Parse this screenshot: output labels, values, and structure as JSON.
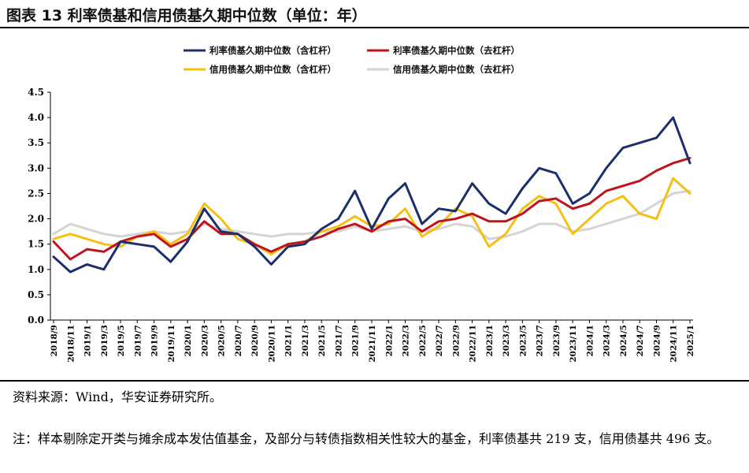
{
  "title": "图表 13  利率债基和信用债基久期中位数（单位：年）",
  "source": "资料来源：Wind，华安证券研究所。",
  "note": "注：样本剔除定开类与摊余成本发估值基金，及部分与转债指数相关性较大的基金，利率债基共 219 支，信用债基共 496 支。",
  "chart_data": {
    "type": "line",
    "title": "",
    "xlabel": "",
    "ylabel": "",
    "ylim": [
      0,
      4.5
    ],
    "yticks": [
      "0.0",
      "0.5",
      "1.0",
      "1.5",
      "2.0",
      "2.5",
      "3.0",
      "3.5",
      "4.0",
      "4.5"
    ],
    "grid": false,
    "legend_position": "top",
    "x": [
      "2018/9",
      "2018/11",
      "2019/1",
      "2019/3",
      "2019/5",
      "2019/7",
      "2019/9",
      "2019/11",
      "2020/1",
      "2020/3",
      "2020/5",
      "2020/7",
      "2020/9",
      "2020/11",
      "2021/1",
      "2021/3",
      "2021/5",
      "2021/7",
      "2021/9",
      "2021/11",
      "2022/1",
      "2022/3",
      "2022/5",
      "2022/7",
      "2022/9",
      "2022/11",
      "2023/1",
      "2023/3",
      "2023/5",
      "2023/7",
      "2023/9",
      "2023/11",
      "2024/1",
      "2024/3",
      "2024/5",
      "2024/7",
      "2024/9",
      "2024/11",
      "2025/1"
    ],
    "series": [
      {
        "name": "利率债基久期中位数（含杠杆）",
        "color": "#1c2f6b",
        "values": [
          1.25,
          0.95,
          1.1,
          1.0,
          1.55,
          1.5,
          1.45,
          1.15,
          1.55,
          2.2,
          1.75,
          1.7,
          1.45,
          1.1,
          1.45,
          1.5,
          1.8,
          2.0,
          2.55,
          1.8,
          2.4,
          2.7,
          1.9,
          2.2,
          2.15,
          2.7,
          2.3,
          2.1,
          2.6,
          3.0,
          2.9,
          2.3,
          2.5,
          3.0,
          3.4,
          3.5,
          3.6,
          4.0,
          3.1
        ]
      },
      {
        "name": "利率债基久期中位数（去杠杆）",
        "color": "#c0141c",
        "values": [
          1.55,
          1.2,
          1.4,
          1.35,
          1.55,
          1.65,
          1.7,
          1.45,
          1.6,
          1.95,
          1.7,
          1.7,
          1.5,
          1.35,
          1.5,
          1.55,
          1.65,
          1.8,
          1.9,
          1.75,
          1.95,
          2.0,
          1.75,
          1.95,
          2.0,
          2.1,
          1.95,
          1.95,
          2.1,
          2.35,
          2.4,
          2.2,
          2.3,
          2.55,
          2.65,
          2.75,
          2.95,
          3.1,
          3.2
        ]
      },
      {
        "name": "信用债基久期中位数（含杠杆）",
        "color": "#f5bf14",
        "values": [
          1.6,
          1.7,
          1.6,
          1.5,
          1.45,
          1.65,
          1.75,
          1.5,
          1.7,
          2.3,
          2.0,
          1.6,
          1.5,
          1.3,
          1.5,
          1.55,
          1.75,
          1.85,
          2.05,
          1.85,
          1.9,
          2.2,
          1.65,
          1.85,
          2.2,
          2.05,
          1.45,
          1.7,
          2.2,
          2.45,
          2.3,
          1.7,
          2.0,
          2.3,
          2.45,
          2.1,
          2.0,
          2.8,
          2.5
        ]
      },
      {
        "name": "信用债基久期中位数（去杠杆）",
        "color": "#d4d4d4",
        "values": [
          1.7,
          1.9,
          1.8,
          1.7,
          1.65,
          1.7,
          1.75,
          1.7,
          1.75,
          1.9,
          1.8,
          1.75,
          1.7,
          1.65,
          1.7,
          1.7,
          1.75,
          1.75,
          1.85,
          1.75,
          1.8,
          1.85,
          1.75,
          1.8,
          1.9,
          1.85,
          1.6,
          1.65,
          1.75,
          1.9,
          1.9,
          1.75,
          1.8,
          1.9,
          2.0,
          2.1,
          2.3,
          2.5,
          2.55
        ]
      }
    ]
  }
}
